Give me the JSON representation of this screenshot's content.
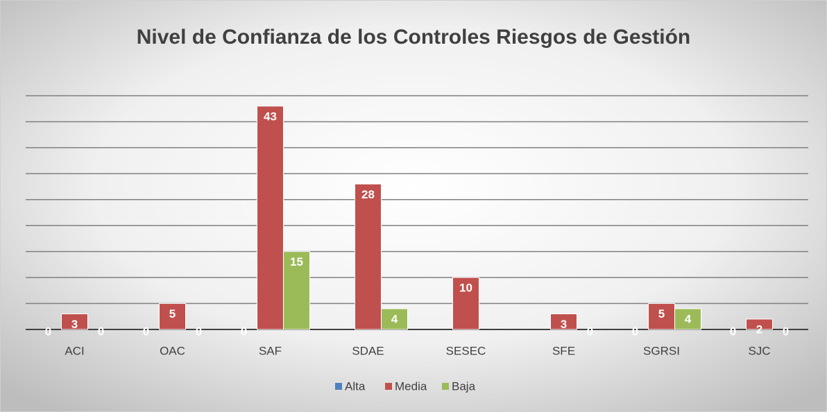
{
  "chart_data": {
    "type": "bar",
    "title": "Nivel de Confianza de los Controles Riesgos de Gestión",
    "categories": [
      "ACI",
      "OAC",
      "SAF",
      "SDAE",
      "SESEC",
      "SFE",
      "SGRSI",
      "SJC"
    ],
    "series": [
      {
        "name": "Alta",
        "color": "#4f81bd",
        "values": [
          0,
          0,
          0,
          null,
          null,
          null,
          0,
          0
        ]
      },
      {
        "name": "Media",
        "color": "#c0504d",
        "values": [
          3,
          5,
          43,
          28,
          10,
          3,
          5,
          2
        ]
      },
      {
        "name": "Baja",
        "color": "#9bbb59",
        "values": [
          0,
          0,
          15,
          4,
          null,
          0,
          4,
          0
        ]
      }
    ],
    "ylim": [
      0,
      45
    ],
    "yticks": [
      0,
      5,
      10,
      15,
      20,
      25,
      30,
      35,
      40,
      45
    ],
    "grid": true,
    "legend": "bottom"
  }
}
